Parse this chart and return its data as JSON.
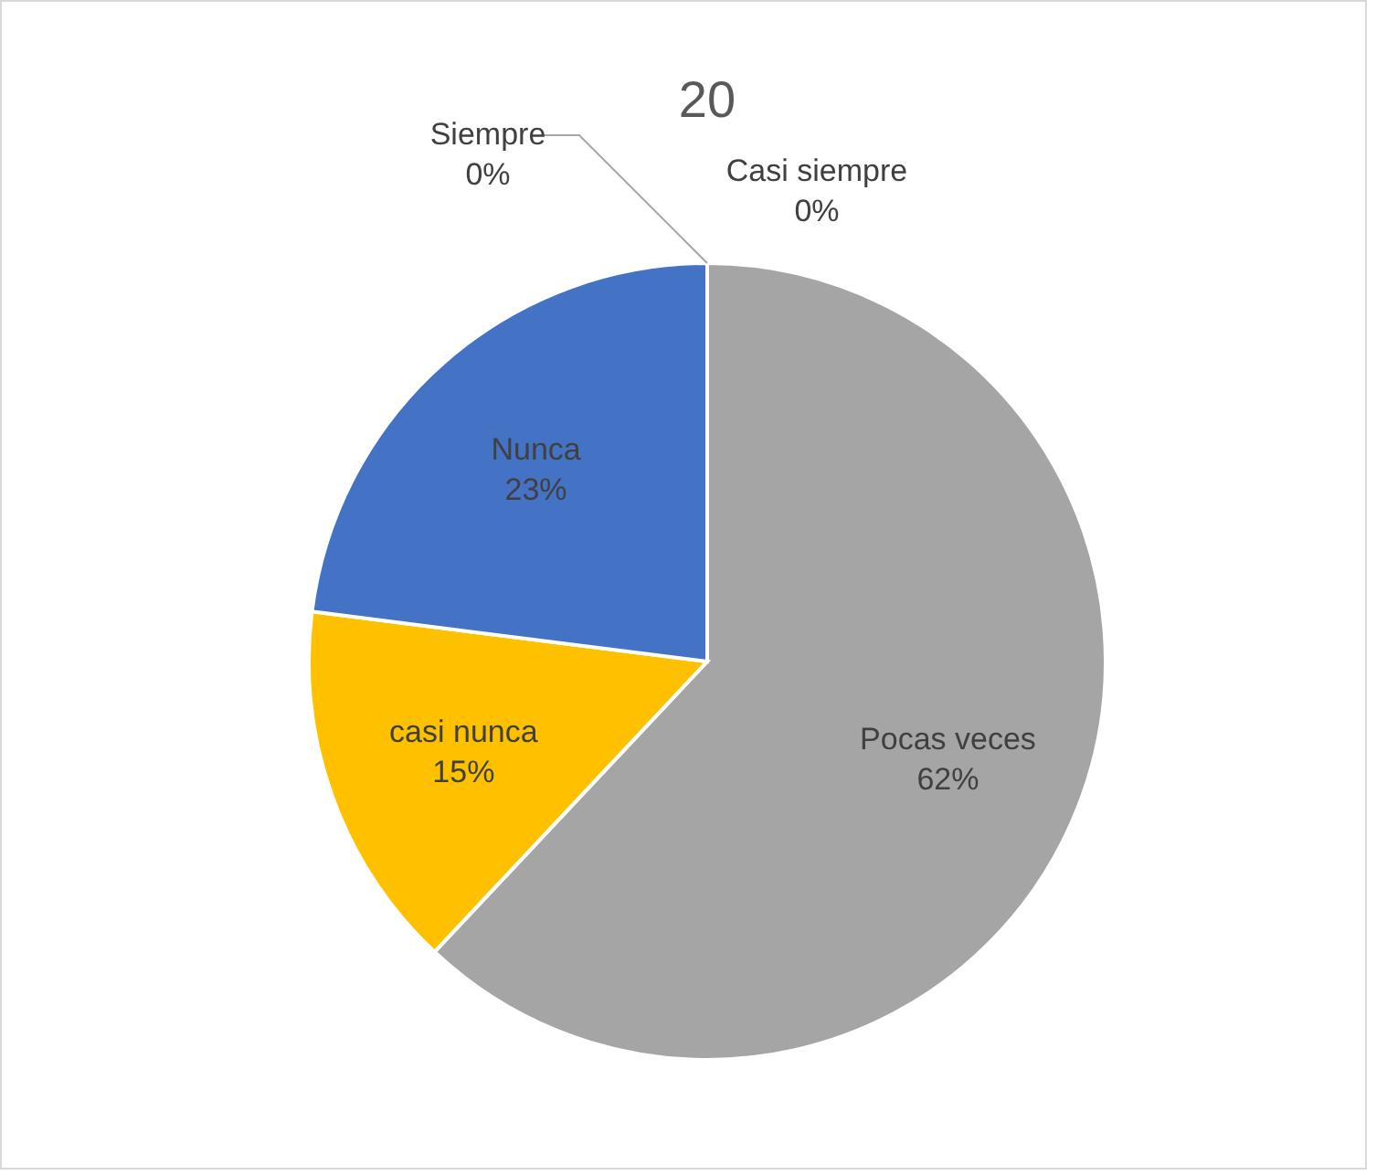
{
  "chart_data": {
    "type": "pie",
    "title": "20",
    "categories": [
      "Siempre",
      "Casi siempre",
      "Pocas veces",
      "casi nunca",
      "Nunca"
    ],
    "values": [
      0,
      0,
      62,
      15,
      23
    ],
    "value_labels": [
      "0%",
      "0%",
      "62%",
      "15%",
      "23%"
    ],
    "colors": [
      "#ed7d31",
      "#5b9bd5",
      "#a5a5a5",
      "#ffc000",
      "#4472c4"
    ]
  }
}
